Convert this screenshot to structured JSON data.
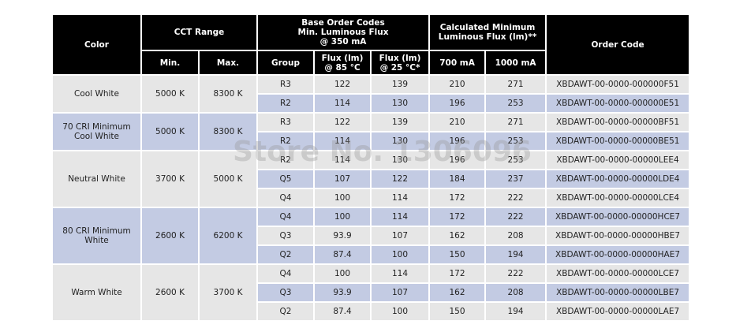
{
  "header": {
    "color": "Color",
    "cct_range": "CCT Range",
    "base_codes": [
      "Base Order Codes",
      "Min. Luminous Flux",
      "@ 350 mA"
    ],
    "calculated": [
      "Calculated Minimum",
      "Luminous Flux (lm)**"
    ],
    "order_code": "Order Code",
    "min": "Min.",
    "max": "Max.",
    "group": "Group",
    "flux85": [
      "Flux (lm)",
      "@ 85 °C"
    ],
    "flux25": [
      "Flux (lm)",
      "@ 25 °C*"
    ],
    "ma700": "700 mA",
    "ma1000": "1000 mA"
  },
  "groups": [
    {
      "color": [
        "Cool White"
      ],
      "min": "5000 K",
      "max": "8300 K",
      "rows": [
        [
          "R3",
          "122",
          "139",
          "210",
          "271",
          "XBDAWT-00-0000-000000F51"
        ],
        [
          "R2",
          "114",
          "130",
          "196",
          "253",
          "XBDAWT-00-0000-000000E51"
        ]
      ]
    },
    {
      "color": [
        "70 CRI Minimum",
        "Cool White"
      ],
      "min": "5000 K",
      "max": "8300 K",
      "rows": [
        [
          "R3",
          "122",
          "139",
          "210",
          "271",
          "XBDAWT-00-0000-00000BF51"
        ],
        [
          "R2",
          "114",
          "130",
          "196",
          "253",
          "XBDAWT-00-0000-00000BE51"
        ]
      ]
    },
    {
      "color": [
        "Neutral White"
      ],
      "min": "3700 K",
      "max": "5000 K",
      "rows": [
        [
          "R2",
          "114",
          "130",
          "196",
          "253",
          "XBDAWT-00-0000-00000LEE4"
        ],
        [
          "Q5",
          "107",
          "122",
          "184",
          "237",
          "XBDAWT-00-0000-00000LDE4"
        ],
        [
          "Q4",
          "100",
          "114",
          "172",
          "222",
          "XBDAWT-00-0000-00000LCE4"
        ]
      ]
    },
    {
      "color": [
        "80 CRI Minimum",
        "White"
      ],
      "min": "2600 K",
      "max": "6200 K",
      "rows": [
        [
          "Q4",
          "100",
          "114",
          "172",
          "222",
          "XBDAWT-00-0000-00000HCE7"
        ],
        [
          "Q3",
          "93.9",
          "107",
          "162",
          "208",
          "XBDAWT-00-0000-00000HBE7"
        ],
        [
          "Q2",
          "87.4",
          "100",
          "150",
          "194",
          "XBDAWT-00-0000-00000HAE7"
        ]
      ]
    },
    {
      "color": [
        "Warm White"
      ],
      "min": "2600 K",
      "max": "3700 K",
      "rows": [
        [
          "Q4",
          "100",
          "114",
          "172",
          "222",
          "XBDAWT-00-0000-00000LCE7"
        ],
        [
          "Q3",
          "93.9",
          "107",
          "162",
          "208",
          "XBDAWT-00-0000-00000LBE7"
        ],
        [
          "Q2",
          "87.4",
          "100",
          "150",
          "194",
          "XBDAWT-00-0000-00000LAE7"
        ]
      ]
    }
  ],
  "watermark": "Store No. 1306096",
  "colors": {
    "header_bg": "#000000",
    "row_gray": "#e6e6e6",
    "row_blue": "#c3cbe3",
    "border": "#8f9cbd"
  }
}
